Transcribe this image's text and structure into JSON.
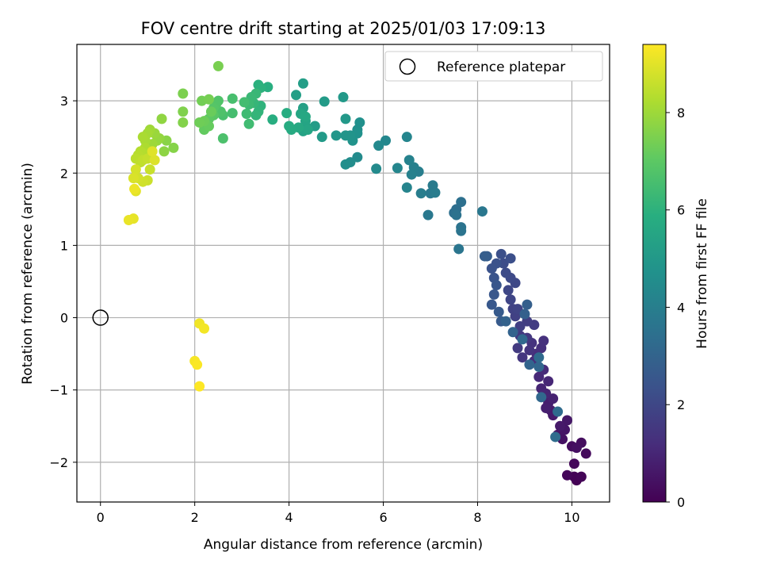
{
  "chart_data": {
    "type": "scatter",
    "title": "FOV centre drift starting at 2025/01/03 17:09:13",
    "xlabel": "Angular distance from reference (arcmin)",
    "ylabel": "Rotation from reference (arcmin)",
    "xlim": [
      -0.5,
      10.8
    ],
    "ylim": [
      -2.55,
      3.78
    ],
    "xticks": [
      0,
      2,
      4,
      6,
      8,
      10
    ],
    "yticks": [
      -2,
      -1,
      0,
      1,
      2,
      3
    ],
    "grid": true,
    "legend": {
      "placement": "upper-right",
      "entries": [
        "Reference platepar"
      ]
    },
    "reference_point": {
      "x": 0,
      "y": 0
    },
    "colorbar": {
      "label": "Hours from first FF file",
      "colormap": "viridis",
      "range": [
        0,
        9.4
      ],
      "ticks": [
        0,
        2,
        4,
        6,
        8
      ]
    },
    "series": [
      {
        "points": [
          [
            10.1,
            -2.25
          ],
          [
            10.05,
            -2.2
          ],
          [
            10.2,
            -2.2
          ],
          [
            9.9,
            -2.18
          ],
          [
            10.05,
            -2.02
          ],
          [
            10.3,
            -1.88
          ],
          [
            10.0,
            -1.78
          ],
          [
            10.2,
            -1.73
          ],
          [
            10.1,
            -1.8
          ],
          [
            9.8,
            -1.68
          ],
          [
            9.7,
            -1.62
          ],
          [
            9.85,
            -1.55
          ],
          [
            9.9,
            -1.42
          ],
          [
            9.75,
            -1.5
          ],
          [
            9.6,
            -1.35
          ],
          [
            9.55,
            -1.28
          ],
          [
            9.5,
            -1.18
          ],
          [
            9.45,
            -1.25
          ],
          [
            9.6,
            -1.12
          ],
          [
            9.45,
            -1.05
          ],
          [
            9.35,
            -0.98
          ],
          [
            9.5,
            -0.88
          ],
          [
            9.3,
            -0.82
          ],
          [
            9.4,
            -0.72
          ],
          [
            9.2,
            -0.6
          ],
          [
            9.25,
            -0.5
          ],
          [
            9.35,
            -0.42
          ],
          [
            9.4,
            -0.32
          ],
          [
            9.15,
            -0.35
          ],
          [
            9.1,
            -0.45
          ],
          [
            8.95,
            -0.55
          ],
          [
            9.05,
            -0.28
          ],
          [
            8.9,
            -0.25
          ],
          [
            8.85,
            -0.42
          ],
          [
            9.2,
            -0.1
          ],
          [
            9.05,
            -0.05
          ],
          [
            8.9,
            -0.12
          ],
          [
            8.8,
            0.02
          ],
          [
            8.75,
            0.12
          ],
          [
            8.85,
            0.12
          ],
          [
            8.7,
            0.25
          ],
          [
            8.65,
            0.38
          ],
          [
            8.8,
            0.48
          ],
          [
            8.7,
            0.55
          ],
          [
            8.6,
            0.62
          ],
          [
            8.55,
            0.75
          ],
          [
            8.7,
            0.82
          ],
          [
            8.5,
            0.88
          ],
          [
            8.4,
            0.75
          ],
          [
            8.3,
            0.68
          ],
          [
            8.35,
            0.55
          ],
          [
            8.4,
            0.45
          ],
          [
            8.35,
            0.32
          ],
          [
            8.3,
            0.18
          ],
          [
            8.45,
            0.08
          ],
          [
            8.5,
            -0.05
          ],
          [
            8.2,
            0.85
          ],
          [
            8.15,
            0.85
          ],
          [
            9.05,
            0.18
          ],
          [
            9.0,
            0.05
          ],
          [
            8.6,
            -0.05
          ],
          [
            8.75,
            -0.2
          ],
          [
            9.1,
            -0.65
          ],
          [
            9.3,
            -0.68
          ],
          [
            9.35,
            -1.1
          ],
          [
            8.95,
            -0.3
          ],
          [
            9.3,
            -0.55
          ],
          [
            9.7,
            -1.3
          ],
          [
            9.65,
            -1.65
          ],
          [
            7.55,
            1.5
          ],
          [
            7.5,
            1.45
          ],
          [
            7.65,
            1.6
          ],
          [
            7.55,
            1.42
          ],
          [
            7.65,
            1.25
          ],
          [
            7.65,
            1.2
          ],
          [
            7.6,
            0.95
          ],
          [
            8.1,
            1.47
          ],
          [
            6.95,
            1.42
          ],
          [
            7.0,
            1.72
          ],
          [
            7.05,
            1.83
          ],
          [
            7.1,
            1.73
          ],
          [
            6.8,
            1.72
          ],
          [
            6.75,
            2.02
          ],
          [
            6.65,
            2.08
          ],
          [
            6.6,
            1.98
          ],
          [
            6.55,
            2.18
          ],
          [
            6.5,
            1.8
          ],
          [
            6.5,
            2.5
          ],
          [
            6.3,
            2.07
          ],
          [
            6.05,
            2.45
          ],
          [
            5.9,
            2.38
          ],
          [
            5.85,
            2.06
          ],
          [
            5.45,
            2.22
          ],
          [
            5.3,
            2.15
          ],
          [
            5.2,
            2.12
          ],
          [
            5.45,
            2.6
          ],
          [
            5.5,
            2.7
          ],
          [
            5.45,
            2.55
          ],
          [
            5.35,
            2.45
          ],
          [
            5.3,
            2.52
          ],
          [
            5.2,
            2.52
          ],
          [
            5.0,
            2.52
          ],
          [
            5.2,
            2.75
          ],
          [
            5.15,
            3.05
          ],
          [
            4.7,
            2.5
          ],
          [
            4.75,
            2.99
          ],
          [
            4.55,
            2.65
          ],
          [
            4.3,
            3.24
          ],
          [
            4.15,
            3.08
          ],
          [
            4.3,
            2.9
          ],
          [
            4.35,
            2.65
          ],
          [
            4.3,
            2.58
          ],
          [
            4.35,
            2.72
          ],
          [
            4.4,
            2.6
          ],
          [
            4.25,
            2.82
          ],
          [
            4.35,
            2.78
          ],
          [
            4.2,
            2.63
          ],
          [
            4.05,
            2.6
          ],
          [
            4.0,
            2.65
          ],
          [
            3.95,
            2.83
          ],
          [
            3.65,
            2.74
          ],
          [
            3.55,
            3.19
          ],
          [
            3.35,
            3.22
          ],
          [
            3.4,
            3.18
          ],
          [
            3.4,
            2.93
          ],
          [
            3.35,
            2.85
          ],
          [
            3.3,
            2.8
          ],
          [
            3.25,
            2.97
          ],
          [
            3.3,
            3.1
          ],
          [
            3.2,
            3.05
          ],
          [
            3.15,
            2.95
          ],
          [
            3.1,
            2.82
          ],
          [
            3.15,
            2.68
          ],
          [
            3.05,
            2.98
          ],
          [
            2.8,
            2.83
          ],
          [
            2.8,
            3.03
          ],
          [
            2.6,
            2.8
          ],
          [
            2.6,
            2.48
          ],
          [
            2.55,
            2.85
          ],
          [
            2.5,
            3.0
          ],
          [
            2.45,
            2.95
          ],
          [
            2.4,
            2.9
          ],
          [
            2.4,
            2.8
          ],
          [
            2.35,
            2.85
          ],
          [
            2.3,
            2.75
          ],
          [
            2.25,
            2.65
          ],
          [
            2.2,
            2.6
          ],
          [
            2.3,
            2.65
          ],
          [
            2.35,
            2.85
          ],
          [
            2.2,
            2.72
          ],
          [
            2.1,
            2.7
          ],
          [
            2.15,
            3.0
          ],
          [
            2.3,
            3.02
          ],
          [
            2.5,
            3.48
          ],
          [
            1.75,
            3.1
          ],
          [
            1.75,
            2.85
          ],
          [
            1.75,
            2.7
          ],
          [
            1.55,
            2.35
          ],
          [
            1.4,
            2.45
          ],
          [
            1.35,
            2.3
          ],
          [
            1.3,
            2.75
          ],
          [
            1.25,
            2.48
          ],
          [
            1.2,
            2.45
          ],
          [
            1.15,
            2.55
          ],
          [
            1.1,
            2.4
          ],
          [
            1.05,
            2.6
          ],
          [
            1.0,
            2.55
          ],
          [
            0.95,
            2.45
          ],
          [
            0.9,
            2.5
          ],
          [
            0.95,
            2.35
          ],
          [
            0.9,
            2.28
          ],
          [
            0.85,
            2.3
          ],
          [
            0.8,
            2.25
          ],
          [
            0.75,
            2.2
          ],
          [
            0.85,
            2.15
          ],
          [
            0.9,
            2.18
          ],
          [
            1.0,
            2.2
          ],
          [
            1.05,
            2.05
          ],
          [
            1.0,
            1.9
          ],
          [
            0.9,
            1.88
          ],
          [
            0.8,
            1.93
          ],
          [
            0.75,
            2.05
          ],
          [
            0.7,
            1.93
          ],
          [
            1.15,
            2.18
          ],
          [
            1.1,
            2.3
          ],
          [
            0.75,
            1.75
          ],
          [
            0.7,
            1.37
          ],
          [
            0.6,
            1.35
          ],
          [
            0.72,
            1.78
          ],
          [
            2.1,
            -0.08
          ],
          [
            2.2,
            -0.15
          ],
          [
            2.0,
            -0.6
          ],
          [
            2.05,
            -0.65
          ],
          [
            2.1,
            -0.95
          ]
        ]
      }
    ]
  }
}
